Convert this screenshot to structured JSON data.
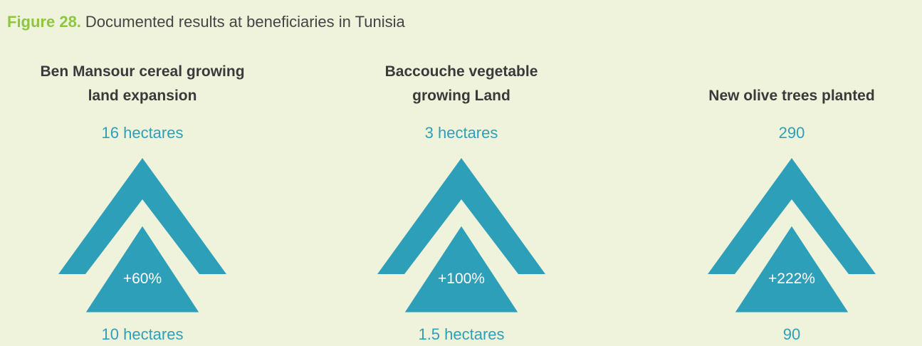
{
  "figure_label": "Figure 28.",
  "title": "Documented results at beneficiaries in Tunisia",
  "panels": [
    {
      "title": "Ben Mansour cereal growing land expansion",
      "after": "16 hectares",
      "change": "+60%",
      "before": "10 hectares"
    },
    {
      "title": "Baccouche vegetable growing Land",
      "after": "3 hectares",
      "change": "+100%",
      "before": "1.5 hectares"
    },
    {
      "title": "New olive trees planted",
      "after": "290",
      "change": "+222%",
      "before": "90"
    }
  ]
}
